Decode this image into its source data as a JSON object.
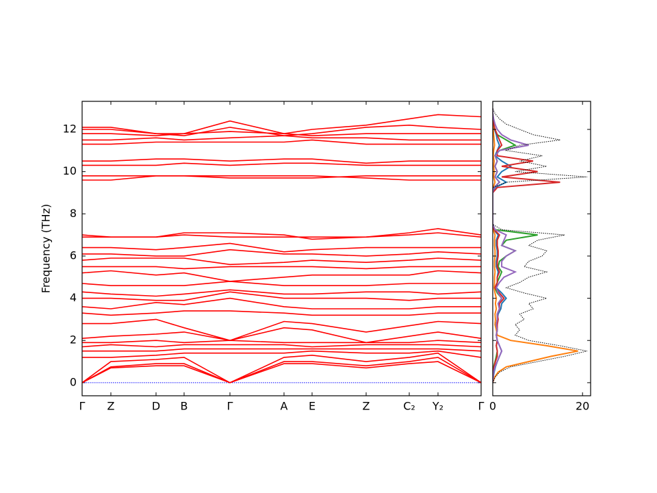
{
  "chart_data": [
    {
      "type": "line",
      "ylabel": "Frequency (THz)",
      "color": "#ff0000",
      "x": [
        0,
        0.42,
        1.08,
        1.49,
        2.16,
        2.95,
        3.36,
        4.15,
        4.78,
        5.2,
        5.83
      ],
      "xlim": [
        0,
        5.83
      ],
      "xticks": [
        {
          "value": 0,
          "label": "Γ"
        },
        {
          "value": 0.42,
          "label": "Z"
        },
        {
          "value": 1.08,
          "label": "D"
        },
        {
          "value": 1.49,
          "label": "B"
        },
        {
          "value": 2.16,
          "label": "Γ"
        },
        {
          "value": 2.95,
          "label": "A"
        },
        {
          "value": 3.36,
          "label": "E"
        },
        {
          "value": 4.15,
          "label": "Z"
        },
        {
          "value": 4.78,
          "label": "C₂"
        },
        {
          "value": 5.2,
          "label": "Y₂"
        },
        {
          "value": 5.83,
          "label": "Γ"
        }
      ],
      "ylim": [
        -0.62,
        13.33
      ],
      "yticks": [
        0,
        2,
        4,
        6,
        8,
        10,
        12
      ],
      "reference_line": {
        "value": 0,
        "color": "#0000ff"
      },
      "series": [
        {
          "values": [
            0,
            0.7,
            0.8,
            0.8,
            0,
            0.9,
            0.9,
            0.7,
            0.9,
            1.0,
            0
          ]
        },
        {
          "values": [
            0,
            0.75,
            0.9,
            0.9,
            0,
            1.0,
            1.0,
            0.8,
            1.0,
            1.2,
            0
          ]
        },
        {
          "values": [
            0,
            1.0,
            1.1,
            1.2,
            0,
            1.2,
            1.3,
            1.0,
            1.2,
            1.4,
            0
          ]
        },
        {
          "values": [
            1.2,
            1.2,
            1.3,
            1.4,
            1.4,
            1.4,
            1.5,
            1.4,
            1.4,
            1.5,
            1.2
          ]
        },
        {
          "values": [
            1.5,
            1.5,
            1.5,
            1.6,
            1.6,
            1.6,
            1.6,
            1.6,
            1.6,
            1.6,
            1.5
          ]
        },
        {
          "values": [
            1.7,
            1.8,
            1.7,
            1.8,
            1.8,
            1.8,
            1.7,
            1.8,
            1.8,
            1.8,
            1.7
          ]
        },
        {
          "values": [
            1.9,
            1.9,
            2.0,
            1.9,
            2.0,
            1.9,
            1.9,
            1.9,
            1.9,
            2.0,
            1.9
          ]
        },
        {
          "values": [
            2.1,
            2.2,
            2.3,
            2.4,
            2.0,
            2.6,
            2.5,
            1.9,
            2.2,
            2.4,
            2.1
          ]
        },
        {
          "values": [
            2.8,
            2.8,
            3.0,
            2.6,
            2.0,
            2.9,
            2.8,
            2.4,
            2.7,
            2.9,
            2.8
          ]
        },
        {
          "values": [
            3.3,
            3.2,
            3.3,
            3.4,
            3.4,
            3.3,
            3.2,
            3.2,
            3.2,
            3.3,
            3.3
          ]
        },
        {
          "values": [
            3.6,
            3.5,
            3.8,
            3.7,
            4.0,
            3.6,
            3.5,
            3.5,
            3.5,
            3.6,
            3.6
          ]
        },
        {
          "values": [
            4.0,
            4.0,
            3.9,
            3.9,
            4.3,
            4.0,
            4.0,
            4.0,
            3.9,
            4.0,
            4.0
          ]
        },
        {
          "values": [
            4.3,
            4.2,
            4.1,
            4.2,
            4.4,
            4.2,
            4.2,
            4.3,
            4.3,
            4.2,
            4.3
          ]
        },
        {
          "values": [
            4.7,
            4.6,
            4.6,
            4.6,
            4.8,
            4.6,
            4.6,
            4.6,
            4.7,
            4.7,
            4.7
          ]
        },
        {
          "values": [
            5.2,
            5.3,
            5.1,
            5.2,
            4.8,
            5.0,
            5.1,
            5.1,
            5.1,
            5.3,
            5.2
          ]
        },
        {
          "values": [
            5.5,
            5.5,
            5.5,
            5.4,
            5.5,
            5.5,
            5.5,
            5.4,
            5.5,
            5.5,
            5.5
          ]
        },
        {
          "values": [
            5.8,
            5.9,
            5.9,
            5.9,
            5.6,
            5.7,
            5.8,
            5.7,
            5.8,
            5.9,
            5.8
          ]
        },
        {
          "values": [
            6.1,
            6.1,
            6.0,
            6.0,
            6.3,
            6.1,
            6.1,
            6.0,
            6.1,
            6.2,
            6.1
          ]
        },
        {
          "values": [
            6.4,
            6.4,
            6.3,
            6.4,
            6.6,
            6.2,
            6.3,
            6.4,
            6.4,
            6.4,
            6.4
          ]
        },
        {
          "values": [
            6.9,
            6.9,
            6.9,
            7.0,
            6.9,
            6.9,
            6.9,
            6.9,
            7.0,
            7.1,
            6.9
          ]
        },
        {
          "values": [
            7.0,
            6.9,
            6.9,
            7.1,
            7.1,
            7.0,
            6.8,
            6.9,
            7.1,
            7.3,
            7.0
          ]
        },
        {
          "values": [
            9.6,
            9.6,
            9.8,
            9.8,
            9.8,
            9.8,
            9.8,
            9.7,
            9.6,
            9.6,
            9.6
          ]
        },
        {
          "values": [
            9.8,
            9.8,
            9.8,
            9.8,
            9.7,
            9.7,
            9.7,
            9.8,
            9.8,
            9.8,
            9.8
          ]
        },
        {
          "values": [
            10.3,
            10.3,
            10.3,
            10.4,
            10.3,
            10.4,
            10.4,
            10.3,
            10.3,
            10.3,
            10.3
          ]
        },
        {
          "values": [
            10.5,
            10.5,
            10.6,
            10.6,
            10.5,
            10.6,
            10.6,
            10.4,
            10.5,
            10.5,
            10.5
          ]
        },
        {
          "values": [
            11.3,
            11.3,
            11.4,
            11.4,
            11.4,
            11.4,
            11.5,
            11.3,
            11.3,
            11.3,
            11.3
          ]
        },
        {
          "values": [
            11.5,
            11.5,
            11.6,
            11.5,
            11.6,
            11.7,
            11.6,
            11.6,
            11.5,
            11.5,
            11.5
          ]
        },
        {
          "values": [
            11.8,
            11.8,
            11.7,
            11.8,
            11.9,
            11.8,
            11.7,
            11.8,
            11.8,
            11.8,
            11.8
          ]
        },
        {
          "values": [
            12.0,
            12.0,
            11.8,
            11.7,
            12.1,
            11.7,
            11.8,
            12.1,
            12.2,
            12.1,
            12.0
          ]
        },
        {
          "values": [
            12.1,
            12.1,
            11.8,
            11.8,
            12.4,
            11.8,
            12.0,
            12.2,
            12.5,
            12.7,
            12.6
          ]
        }
      ]
    },
    {
      "type": "line",
      "orientation": "horizontal",
      "xlim": [
        0,
        21.8
      ],
      "xticks": [
        0,
        20
      ],
      "ylim": [
        -0.62,
        13.33
      ],
      "frequencies": [
        0,
        0.25,
        0.5,
        0.75,
        1,
        1.25,
        1.5,
        1.75,
        2,
        2.25,
        2.5,
        2.75,
        3,
        3.25,
        3.5,
        3.75,
        4,
        4.25,
        4.5,
        4.75,
        5,
        5.25,
        5.5,
        5.75,
        6,
        6.25,
        6.5,
        6.75,
        7,
        7.25,
        7.5,
        7.75,
        8,
        8.25,
        8.5,
        8.75,
        9,
        9.25,
        9.5,
        9.75,
        10,
        10.25,
        10.5,
        10.75,
        11,
        11.25,
        11.5,
        11.75,
        12,
        12.25,
        12.5,
        12.75,
        13
      ],
      "series": [
        {
          "color": "#1f77b4",
          "style": "solid",
          "values": [
            0,
            0.1,
            0.3,
            0.6,
            1,
            1.5,
            2,
            1.5,
            1,
            0.8,
            1,
            0.8,
            1,
            1.2,
            1.8,
            2,
            3,
            2,
            0.8,
            1,
            1,
            1.2,
            0.8,
            0.8,
            1,
            1,
            0.8,
            0.8,
            1.2,
            0.2,
            0,
            0,
            0,
            0,
            0,
            0,
            0,
            0.5,
            3,
            1,
            2,
            4,
            2,
            0.5,
            1,
            1.5,
            1,
            0.8,
            0.4,
            0.2,
            0.1,
            0,
            0
          ]
        },
        {
          "color": "#ff7f0e",
          "style": "solid",
          "values": [
            0,
            0.4,
            1.2,
            3,
            8,
            13,
            19,
            12,
            4,
            1,
            0.8,
            0.5,
            0.6,
            0.5,
            0.8,
            0.6,
            0.8,
            0.5,
            0.3,
            0.4,
            0.4,
            0.5,
            0.4,
            0.4,
            0.5,
            0.5,
            0.4,
            0.4,
            0.5,
            0.1,
            0,
            0,
            0,
            0,
            0,
            0,
            0,
            0.1,
            0.5,
            0.2,
            0.3,
            0.2,
            0.3,
            0.1,
            0.2,
            0.4,
            0.3,
            0.2,
            0.1,
            0,
            0,
            0,
            0
          ]
        },
        {
          "color": "#2ca02c",
          "style": "solid",
          "values": [
            0,
            0,
            0.1,
            0.2,
            0.5,
            0.8,
            1,
            0.8,
            1,
            0.8,
            1,
            0.8,
            1,
            1,
            1.5,
            1.2,
            2,
            1,
            0.5,
            1,
            1.5,
            2,
            1.2,
            1.5,
            3,
            5,
            2,
            3,
            10,
            0.5,
            0,
            0,
            0,
            0,
            0,
            0,
            0,
            0.3,
            1.5,
            0.5,
            1,
            0.5,
            1,
            0.5,
            1.5,
            5,
            3,
            1,
            0.5,
            0.2,
            0.1,
            0,
            0
          ]
        },
        {
          "color": "#d62728",
          "style": "solid",
          "values": [
            0,
            0,
            0.1,
            0.3,
            0.6,
            1,
            1,
            0.8,
            1,
            0.8,
            1,
            1,
            1.2,
            1,
            1.5,
            1.5,
            2.5,
            1.5,
            0.5,
            1,
            1,
            1.5,
            1,
            1,
            1.2,
            1.2,
            1,
            1,
            1.5,
            0.3,
            0,
            0,
            0,
            0,
            0,
            0,
            0,
            1,
            15,
            2,
            10,
            2,
            9,
            1,
            1,
            2,
            1.5,
            1,
            0.5,
            0.2,
            0.1,
            0,
            0
          ]
        },
        {
          "color": "#9467bd",
          "style": "solid",
          "values": [
            0,
            0.1,
            0.2,
            0.5,
            1,
            1.5,
            2,
            1.5,
            1,
            0.8,
            1,
            0.8,
            1,
            1,
            1.5,
            1.2,
            2,
            1.2,
            0.8,
            1.5,
            2.5,
            5,
            2,
            2,
            3,
            5,
            2,
            2.5,
            3,
            0.5,
            0,
            0,
            0,
            0,
            0,
            0,
            0,
            0.3,
            1.5,
            0.5,
            1,
            0.5,
            1,
            0.5,
            1.5,
            8,
            4,
            2,
            1,
            0.5,
            0.2,
            0,
            0
          ]
        },
        {
          "color": "#000000",
          "style": "dotted",
          "values": [
            0,
            0.5,
            1.5,
            4,
            10,
            16,
            21,
            15,
            8,
            5,
            6,
            5,
            7,
            6,
            9,
            8,
            12,
            7,
            3,
            6,
            8,
            12,
            7,
            8,
            11,
            12,
            8,
            10,
            16,
            2,
            0,
            0,
            0,
            0,
            0,
            0,
            0,
            0,
            3,
            21,
            5,
            12,
            6,
            11,
            3,
            6,
            15,
            9,
            6,
            3,
            1.5,
            0.5,
            0,
            0
          ]
        }
      ]
    }
  ]
}
